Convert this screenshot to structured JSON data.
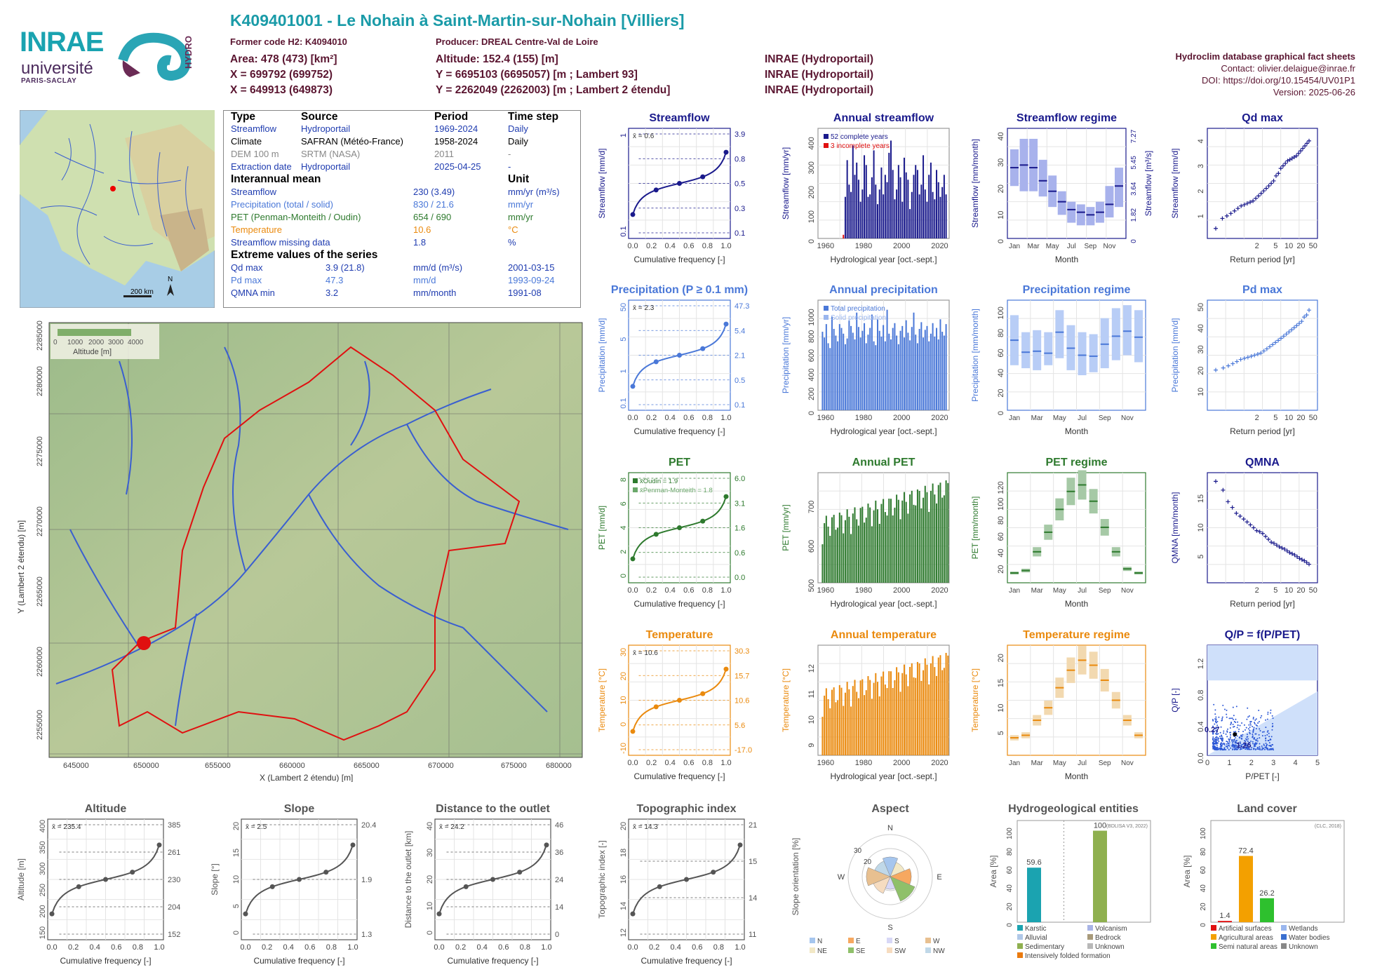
{
  "header": {
    "title": "K409401001 - Le Nohain à Saint-Martin-sur-Nohain [Villiers]",
    "former_code": "Former code H2: K4094010",
    "producer": "Producer: DREAL Centre-Val de Loire",
    "area": "Area: 478 (473) [km²]",
    "altitude": "Altitude: 152.4 (155) [m]",
    "x1": "X = 699792 (699752)",
    "y1": "Y = 6695103 (6695057) [m ; Lambert 93]",
    "x2": "X = 649913 (649873)",
    "y2": "Y = 2262049 (2262003) [m ; Lambert 2 étendu]",
    "src1": "INRAE (Hydroportail)",
    "src2": "INRAE (Hydroportail)",
    "src3": "INRAE (Hydroportail)",
    "db": "Hydroclim database graphical fact sheets",
    "contact": "Contact: olivier.delaigue@inrae.fr",
    "doi": "DOI: https://doi.org/10.15454/UV01P1",
    "version": "Version: 2025-06-26",
    "logo_inrae": "INRAE",
    "logo_univ": "université",
    "logo_ps": "PARIS-SACLAY",
    "logo_hydro": "HYDRO"
  },
  "info_table": {
    "h_type": "Type",
    "h_source": "Source",
    "h_period": "Period",
    "h_step": "Time step",
    "rows": [
      [
        "Streamflow",
        "Hydroportail",
        "1969-2024",
        "Daily"
      ],
      [
        "Climate",
        "SAFRAN (Météo-France)",
        "1958-2024",
        "Daily"
      ],
      [
        "DEM 100 m",
        "SRTM (NASA)",
        "2011",
        "-"
      ],
      [
        "Extraction date",
        "Hydroportail",
        "2025-04-25",
        "-"
      ]
    ],
    "h_mean": "Interannual mean",
    "h_unit": "Unit",
    "means": [
      [
        "Streamflow",
        "230 (3.49)",
        "mm/yr (m³/s)"
      ],
      [
        "Precipitation (total / solid)",
        "830 / 21.6",
        "mm/yr"
      ],
      [
        "PET (Penman-Monteith / Oudin)",
        "654 / 690",
        "mm/yr"
      ],
      [
        "Temperature",
        "10.6",
        "°C"
      ],
      [
        "Streamflow missing data",
        "1.8",
        "%"
      ]
    ],
    "h_ext": "Extreme values of the series",
    "ext": [
      [
        "Qd max",
        "3.9 (21.8)",
        "mm/d (m³/s)",
        "2001-03-15"
      ],
      [
        "Pd max",
        "47.3",
        "mm/d",
        "1993-09-24"
      ],
      [
        "QMNA min",
        "3.2",
        "mm/month",
        "1991-08"
      ]
    ]
  },
  "map": {
    "scale": "200 km",
    "north": "N",
    "legend_title": "Altitude [m]",
    "legend_ticks": [
      "0",
      "1000",
      "2000",
      "3000",
      "4000"
    ],
    "xlabel": "X (Lambert 2 étendu) [m]",
    "ylabel": "Y (Lambert 2 étendu) [m]",
    "xticks": [
      "645000",
      "650000",
      "655000",
      "660000",
      "665000",
      "670000",
      "675000",
      "680000"
    ],
    "yticks": [
      "2255000",
      "2260000",
      "2265000",
      "2270000",
      "2275000",
      "2280000",
      "2285000"
    ]
  },
  "colors": {
    "streamflow": "#1a1a8c",
    "precip": "#4a78d8",
    "pet": "#2e7a2e",
    "temp": "#ea8a0e",
    "title_teal": "#1a9ba8",
    "maroon": "#5a1530"
  },
  "chart_data": [
    {
      "id": "streamflow",
      "type": "line",
      "title": "Streamflow",
      "xlabel": "Cumulative frequency [-]",
      "ylabel": "Streamflow [mm/d]",
      "mean": "x̄ = 0.6",
      "right_ticks": [
        "3.9",
        "0.8",
        "0.5",
        "0.3",
        "0.1"
      ],
      "points": [
        [
          0,
          0.1
        ],
        [
          0.25,
          0.3
        ],
        [
          0.5,
          0.5
        ],
        [
          0.75,
          0.8
        ],
        [
          1,
          3.9
        ]
      ],
      "yticks": [
        "0.1",
        "1"
      ]
    },
    {
      "id": "annual_streamflow",
      "type": "bar",
      "title": "Annual streamflow",
      "xlabel": "Hydrological year [oct.-sept.]",
      "ylabel": "Streamflow [mm/yr]",
      "legend": [
        "52 complete years",
        "3 incomplete years"
      ],
      "xticks": [
        "1960",
        "1980",
        "2000",
        "2020"
      ],
      "yticks": [
        "0",
        "100",
        "200",
        "300",
        "400"
      ],
      "ylim": [
        0,
        450
      ],
      "x_start": 1969,
      "values": [
        15,
        170,
        320,
        220,
        190,
        380,
        260,
        310,
        240,
        150,
        200,
        340,
        300,
        170,
        180,
        250,
        360,
        220,
        140,
        200,
        290,
        180,
        260,
        230,
        350,
        400,
        280,
        160,
        200,
        300,
        250,
        150,
        330,
        270,
        240,
        120,
        190,
        260,
        300,
        280,
        180,
        220,
        340,
        200,
        150,
        260,
        310,
        190,
        160,
        280,
        230,
        170,
        210,
        260,
        180
      ]
    },
    {
      "id": "streamflow_regime",
      "type": "box",
      "title": "Streamflow regime",
      "xlabel": "Month",
      "ylabel": "Streamflow [mm/month]",
      "ylabel2": "Streamflow [m³/s]",
      "months": [
        "Jan",
        "Mar",
        "May",
        "Jul",
        "Sep",
        "Nov"
      ],
      "medians": [
        27,
        28,
        27,
        22,
        18,
        14,
        11,
        10,
        9,
        10,
        13,
        20
      ],
      "q_low": [
        20,
        18,
        18,
        16,
        12,
        9,
        6,
        5,
        5,
        6,
        8,
        12
      ],
      "q_high": [
        34,
        38,
        38,
        30,
        24,
        18,
        14,
        13,
        12,
        14,
        20,
        27
      ],
      "yticks": [
        "0",
        "10",
        "20",
        "30",
        "40"
      ],
      "y2ticks": [
        "0",
        "1.82",
        "3.64",
        "5.45",
        "7.27"
      ]
    },
    {
      "id": "qd_max",
      "type": "scatter",
      "title": "Qd max",
      "xlabel": "Return period [yr]",
      "ylabel": "Streamflow [mm/d]",
      "xticks": [
        "2",
        "5",
        "10",
        "20",
        "50"
      ],
      "yticks": [
        "1",
        "2",
        "3",
        "4"
      ],
      "values": [
        0.4,
        0.8,
        0.9,
        1.0,
        1.1,
        1.2,
        1.3,
        1.35,
        1.4,
        1.45,
        1.5,
        1.6,
        1.7,
        1.8,
        1.9,
        2.0,
        2.1,
        2.2,
        2.3,
        2.5,
        2.6,
        2.8,
        2.9,
        3.0,
        3.1,
        3.15,
        3.2,
        3.25,
        3.3,
        3.4,
        3.5,
        3.6,
        3.7,
        3.8,
        3.9
      ]
    },
    {
      "id": "precipitation",
      "type": "line",
      "title": "Precipitation (P ≥ 0.1 mm)",
      "xlabel": "Cumulative frequency [-]",
      "ylabel": "Precipitation [mm/d]",
      "mean": "x̄ = 2.3",
      "right_ticks": [
        "47.3",
        "5.4",
        "2.1",
        "0.5",
        "0.1"
      ],
      "yticks": [
        "0.1",
        "1",
        "5",
        "50"
      ]
    },
    {
      "id": "annual_precipitation",
      "type": "bar",
      "title": "Annual precipitation",
      "xlabel": "Hydrological year [oct.-sept.]",
      "ylabel": "Precipitation [mm/yr]",
      "legend": [
        "Total precipitation",
        "Solid precipitation"
      ],
      "xticks": [
        "1960",
        "1980",
        "2000",
        "2020"
      ],
      "yticks": [
        "0",
        "200",
        "400",
        "600",
        "800",
        "1000"
      ],
      "ylim": [
        0,
        1150
      ],
      "x_start": 1958,
      "values": [
        820,
        760,
        900,
        700,
        650,
        980,
        850,
        780,
        720,
        900,
        860,
        800,
        690,
        750,
        940,
        880,
        810,
        740,
        1020,
        870,
        760,
        830,
        910,
        700,
        790,
        860,
        1000,
        720,
        680,
        950,
        830,
        770,
        890,
        720,
        1050,
        800,
        740,
        860,
        910,
        780,
        690,
        830,
        880,
        760,
        940,
        810,
        730,
        870,
        1020,
        790,
        700,
        850,
        920,
        760,
        840,
        880,
        720,
        800,
        910,
        770,
        860,
        740,
        950,
        820,
        780,
        900
      ]
    },
    {
      "id": "precip_regime",
      "type": "box",
      "title": "Precipitation regime",
      "xlabel": "Month",
      "ylabel": "Precipitation [mm/month]",
      "months": [
        "Jan",
        "Mar",
        "May",
        "Jul",
        "Sep",
        "Nov"
      ],
      "medians": [
        70,
        58,
        59,
        57,
        78,
        62,
        55,
        54,
        66,
        74,
        79,
        73
      ],
      "q_low": [
        45,
        42,
        40,
        45,
        52,
        40,
        35,
        38,
        42,
        50,
        55,
        48
      ],
      "q_high": [
        95,
        78,
        80,
        78,
        100,
        85,
        78,
        76,
        92,
        102,
        105,
        100
      ],
      "yticks": [
        "0",
        "20",
        "40",
        "60",
        "80",
        "100"
      ]
    },
    {
      "id": "pd_max",
      "type": "scatter",
      "title": "Pd max",
      "xlabel": "Return period [yr]",
      "ylabel": "Precipitation [mm/d]",
      "xticks": [
        "2",
        "5",
        "10",
        "20",
        "50"
      ],
      "yticks": [
        "10",
        "20",
        "30",
        "40",
        "50"
      ],
      "values": [
        19,
        20,
        21,
        22,
        23,
        24,
        24.5,
        25,
        25.5,
        26,
        26.5,
        27,
        28,
        29,
        30,
        31,
        32,
        33,
        34,
        35,
        36,
        37,
        38,
        39,
        40,
        41,
        42,
        44,
        45,
        47.3
      ]
    },
    {
      "id": "pet",
      "type": "line",
      "title": "PET",
      "xlabel": "Cumulative frequency [-]",
      "ylabel": "PET [mm/d]",
      "legend": [
        "x̄Oudin = 1.9",
        "x̄Penman-Monteith = 1.8"
      ],
      "right_ticks": [
        "6.0",
        "3.1",
        "1.6",
        "0.6",
        "0.0"
      ],
      "yticks": [
        "0",
        "2",
        "4",
        "6",
        "8"
      ]
    },
    {
      "id": "annual_pet",
      "type": "bar",
      "title": "Annual PET",
      "xlabel": "Hydrological year [oct.-sept.]",
      "ylabel": "PET [mm/yr]",
      "xticks": [
        "1960",
        "1980",
        "2000",
        "2020"
      ],
      "yticks": [
        "500",
        "600",
        "700"
      ],
      "ylim": [
        500,
        780
      ],
      "x_start": 1958
    },
    {
      "id": "pet_regime",
      "type": "box",
      "title": "PET regime",
      "xlabel": "Month",
      "ylabel": "PET [mm/month]",
      "months": [
        "Jan",
        "Mar",
        "May",
        "Jul",
        "Sep",
        "Nov"
      ],
      "medians": [
        12,
        15,
        38,
        62,
        90,
        112,
        120,
        100,
        68,
        38,
        17,
        12
      ],
      "yticks": [
        "20",
        "40",
        "60",
        "80",
        "100",
        "120"
      ]
    },
    {
      "id": "qmna",
      "type": "scatter",
      "title": "QMNA",
      "xlabel": "Return period [yr]",
      "ylabel": "QMNA [mm/month]",
      "xticks": [
        "2",
        "5",
        "10",
        "20",
        "50"
      ],
      "yticks": [
        "5",
        "10",
        "15"
      ],
      "values": [
        17.5,
        16,
        14,
        13,
        12,
        11.5,
        11,
        10.5,
        10,
        9.5,
        9,
        8.8,
        8.5,
        8,
        7.5,
        7,
        6.8,
        6.5,
        6.2,
        6,
        5.8,
        5.5,
        5.2,
        5,
        4.8,
        4.5,
        4.2,
        4,
        3.8,
        3.5,
        3.2
      ]
    },
    {
      "id": "temperature",
      "type": "line",
      "title": "Temperature",
      "xlabel": "Cumulative frequency [-]",
      "ylabel": "Temperature [°C]",
      "mean": "x̄ = 10.6",
      "right_ticks": [
        "30.3",
        "15.7",
        "10.6",
        "5.6",
        "-17.0"
      ],
      "yticks": [
        "-10",
        "0",
        "10",
        "20",
        "30"
      ]
    },
    {
      "id": "annual_temperature",
      "type": "bar",
      "title": "Annual temperature",
      "xlabel": "Hydrological year [oct.-sept.]",
      "ylabel": "Temperature [°C]",
      "xticks": [
        "1960",
        "1980",
        "2000",
        "2020"
      ],
      "yticks": [
        "9",
        "10",
        "11",
        "12"
      ],
      "ylim": [
        8.5,
        12.8
      ],
      "x_start": 1958
    },
    {
      "id": "temp_regime",
      "type": "box",
      "title": "Temperature regime",
      "xlabel": "Month",
      "ylabel": "Temperature [°C]",
      "months": [
        "Jan",
        "Mar",
        "May",
        "Jul",
        "Sep",
        "Nov"
      ],
      "medians": [
        3.5,
        4,
        7,
        9.5,
        13.5,
        17,
        19,
        18,
        15,
        11,
        7,
        4
      ],
      "yticks": [
        "5",
        "10",
        "15",
        "20"
      ]
    },
    {
      "id": "qp",
      "type": "scatter",
      "title": "Q/P = f(P/PET)",
      "xlabel": "P/PET [-]",
      "ylabel": "Q/P [-]",
      "xticks": [
        "0",
        "1",
        "2",
        "3",
        "4",
        "5"
      ],
      "yticks": [
        "0.0",
        "0.4",
        "0.8",
        "1.2"
      ],
      "annot": [
        "0.27",
        "1.26"
      ]
    },
    {
      "id": "altitude",
      "type": "line",
      "title": "Altitude",
      "xlabel": "Cumulative frequency [-]",
      "ylabel": "Altitude [m]",
      "mean": "x̄ = 235.4",
      "right_ticks": [
        "385",
        "261",
        "230",
        "204",
        "152"
      ],
      "yticks": [
        "150",
        "200",
        "250",
        "300",
        "350",
        "400"
      ]
    },
    {
      "id": "slope",
      "type": "line",
      "title": "Slope",
      "xlabel": "Cumulative frequency [-]",
      "ylabel": "Slope [°]",
      "mean": "x̄ = 2.5",
      "right_ticks": [
        "20.4",
        "1.9",
        "1.3"
      ],
      "yticks": [
        "0",
        "5",
        "10",
        "15",
        "20"
      ]
    },
    {
      "id": "distance",
      "type": "line",
      "title": "Distance to the outlet",
      "xlabel": "Cumulative frequency [-]",
      "ylabel": "Distance to the outlet [km]",
      "mean": "x̄ = 24.2",
      "right_ticks": [
        "46",
        "36",
        "24",
        "14",
        "0"
      ],
      "yticks": [
        "0",
        "10",
        "20",
        "30",
        "40"
      ]
    },
    {
      "id": "topo",
      "type": "line",
      "title": "Topographic index",
      "xlabel": "Cumulative frequency [-]",
      "ylabel": "Topographic index [-]",
      "mean": "x̄ = 14.3",
      "right_ticks": [
        "21",
        "15",
        "14",
        "11"
      ],
      "yticks": [
        "12",
        "14",
        "16",
        "18",
        "20"
      ]
    },
    {
      "id": "aspect",
      "type": "pie",
      "title": "Aspect",
      "ylabel": "Slope orientation [%]",
      "labels": [
        "N",
        "E",
        "S",
        "W"
      ],
      "rings": [
        "20",
        "30"
      ],
      "legend": [
        "N",
        "E",
        "S",
        "W",
        "NE",
        "SE",
        "SW",
        "NW"
      ]
    },
    {
      "id": "hydrogeo",
      "type": "bar",
      "title": "Hydrogeological entities",
      "ylabel": "Area [%]",
      "source": "(BDLISA V3, 2022)",
      "values": [
        59.6,
        100
      ],
      "labels": [
        "59.6",
        "100"
      ],
      "legend": [
        "Karstic",
        "Volcanism",
        "Alluvial",
        "Bedrock",
        "Sedimentary",
        "Unknown",
        "Intensively folded formation"
      ],
      "yticks": [
        "0",
        "20",
        "40",
        "60",
        "80",
        "100"
      ]
    },
    {
      "id": "landcover",
      "type": "bar",
      "title": "Land cover",
      "ylabel": "Area [%]",
      "source": "(CLC, 2018)",
      "values": [
        1.4,
        72.4,
        26.2
      ],
      "labels": [
        "1.4",
        "72.4",
        "26.2"
      ],
      "legend": [
        "Artificial surfaces",
        "Wetlands",
        "Agricultural areas",
        "Water bodies",
        "Semi natural areas",
        "Unknown"
      ],
      "yticks": [
        "0",
        "20",
        "40",
        "60",
        "80",
        "100"
      ]
    }
  ]
}
